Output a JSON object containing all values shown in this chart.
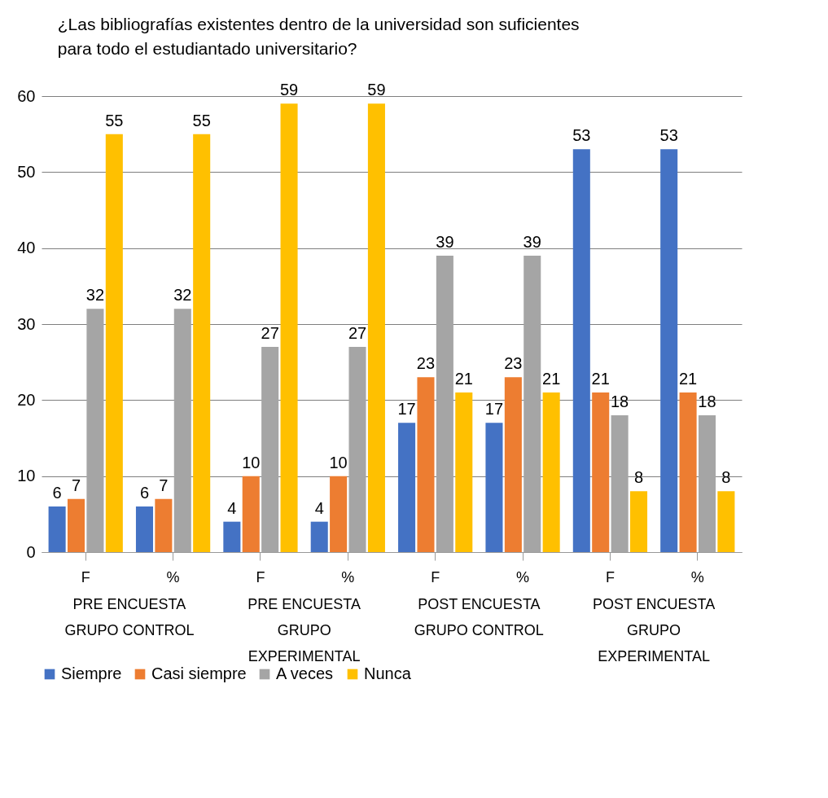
{
  "chart_data": {
    "type": "bar",
    "title": "¿Las bibliografías existentes dentro de la universidad son suficientes para todo el estudiantado universitario?",
    "categories": [
      "F",
      "%",
      "F",
      "%",
      "F",
      "%",
      "F",
      "%"
    ],
    "series": [
      {
        "name": "Siempre",
        "color": "#4472c4",
        "values": [
          6,
          6,
          4,
          4,
          17,
          17,
          53,
          53
        ]
      },
      {
        "name": "Casi siempre",
        "color": "#ed7d31",
        "values": [
          7,
          7,
          10,
          10,
          23,
          23,
          21,
          21
        ]
      },
      {
        "name": "A veces",
        "color": "#a5a5a5",
        "values": [
          32,
          32,
          27,
          27,
          39,
          39,
          18,
          18
        ]
      },
      {
        "name": "Nunca",
        "color": "#ffc000",
        "values": [
          55,
          55,
          59,
          59,
          21,
          21,
          8,
          8
        ]
      }
    ],
    "annotations": [
      "PRE ENCUESTA GRUPO CONTROL",
      "PRE ENCUESTA GRUPO EXPERIMENTAL",
      "POST ENCUESTA GRUPO CONTROL",
      "POST ENCUESTA GRUPO EXPERIMENTAL"
    ],
    "ylim": [
      0,
      60
    ],
    "yticks": [
      0,
      10,
      20,
      30,
      40,
      50,
      60
    ],
    "grid": "y",
    "legend": "bottom",
    "data_labels": true
  }
}
